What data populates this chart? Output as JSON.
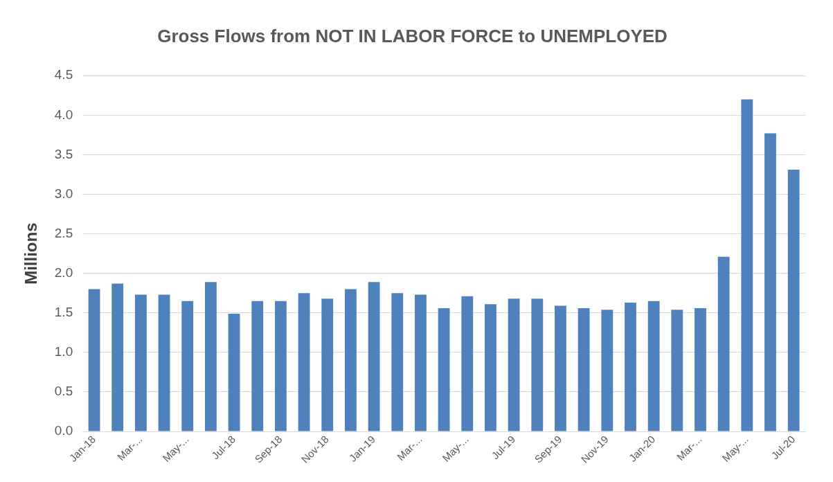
{
  "chart_data": {
    "type": "bar",
    "title": "Gross Flows from NOT IN LABOR FORCE to UNEMPLOYED",
    "ylabel": "Millions",
    "categories": [
      "Jan-18",
      null,
      "Mar-...",
      null,
      "May-...",
      null,
      "Jul-18",
      null,
      "Sep-18",
      null,
      "Nov-18",
      null,
      "Jan-19",
      null,
      "Mar-...",
      null,
      "May-...",
      null,
      "Jul-19",
      null,
      "Sep-19",
      null,
      "Nov-19",
      null,
      "Jan-20",
      null,
      "Mar-...",
      null,
      "May-...",
      null,
      "Jul-20"
    ],
    "values": [
      1.8,
      1.87,
      1.73,
      1.73,
      1.65,
      1.89,
      1.49,
      1.65,
      1.65,
      1.75,
      1.68,
      1.8,
      1.89,
      1.75,
      1.73,
      1.56,
      1.71,
      1.61,
      1.68,
      1.68,
      1.59,
      1.56,
      1.54,
      1.63,
      1.65,
      1.54,
      1.56,
      2.21,
      4.2,
      3.77,
      3.31
    ],
    "color": "#4f81bd",
    "ylim": [
      0,
      4.5
    ],
    "yticks": [
      {
        "value": 0,
        "label": "0.0"
      },
      0.5,
      {
        "value": 1,
        "label": "1.0"
      },
      1.5,
      {
        "value": 2,
        "label": "2.0"
      },
      2.5,
      {
        "value": 3,
        "label": "3.0"
      },
      3.5,
      {
        "value": 4,
        "label": "4.0"
      },
      4.5
    ],
    "grid": "y"
  }
}
